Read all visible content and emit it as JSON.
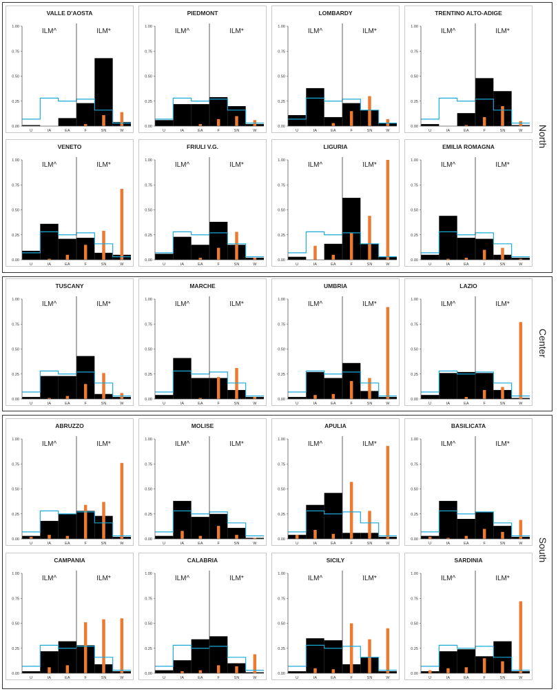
{
  "regions": [
    {
      "label": "North"
    },
    {
      "label": "Center"
    },
    {
      "label": "South"
    }
  ],
  "annotations": {
    "left": "ILM^",
    "right": "ILM*"
  },
  "colors": {
    "observed": "#000000",
    "reference": "#1ba8d8",
    "bar": "#ec7b31"
  },
  "chart_data": {
    "type": "bar",
    "categories": [
      "U",
      "IA",
      "EA",
      "F",
      "SN",
      "W"
    ],
    "ylim": [
      0,
      1
    ],
    "yticks": [
      "0.00",
      "0.25",
      "0.50",
      "0.75",
      "1.00"
    ],
    "reference_series": [
      0.07,
      0.28,
      0.25,
      0.27,
      0.16,
      0.03
    ],
    "panels": [
      {
        "title": "VALLE D'AOSTA",
        "region": "North",
        "hist": [
          0.01,
          0.0,
          0.08,
          0.23,
          0.68,
          0.04
        ],
        "bars": [
          0.0,
          0.0,
          0.0,
          0.02,
          0.11,
          0.14
        ]
      },
      {
        "title": "PIEDMONT",
        "region": "North",
        "hist": [
          0.06,
          0.22,
          0.22,
          0.29,
          0.2,
          0.02
        ],
        "bars": [
          0.0,
          0.0,
          0.02,
          0.07,
          0.1,
          0.06
        ]
      },
      {
        "title": "LOMBARDY",
        "region": "North",
        "hist": [
          0.11,
          0.38,
          0.09,
          0.23,
          0.16,
          0.03
        ],
        "bars": [
          0.0,
          0.0,
          0.03,
          0.15,
          0.3,
          0.07
        ]
      },
      {
        "title": "TRENTINO ALTO-ADIGE",
        "region": "North",
        "hist": [
          0.02,
          0.0,
          0.13,
          0.48,
          0.35,
          0.01
        ],
        "bars": [
          0.0,
          0.0,
          0.01,
          0.09,
          0.2,
          0.05
        ]
      },
      {
        "title": "VENETO",
        "region": "North",
        "hist": [
          0.09,
          0.36,
          0.21,
          0.22,
          0.07,
          0.05
        ],
        "bars": [
          0.0,
          0.01,
          0.05,
          0.15,
          0.29,
          0.71
        ]
      },
      {
        "title": "FRIULI V.G.",
        "region": "North",
        "hist": [
          0.06,
          0.23,
          0.15,
          0.38,
          0.15,
          0.02
        ],
        "bars": [
          0.0,
          0.0,
          0.02,
          0.12,
          0.28,
          0.02
        ]
      },
      {
        "title": "LIGURIA",
        "region": "North",
        "hist": [
          0.03,
          0.0,
          0.16,
          0.62,
          0.16,
          0.03
        ],
        "bars": [
          0.0,
          0.14,
          0.05,
          0.27,
          0.44,
          1.0
        ]
      },
      {
        "title": "EMILIA ROMAGNA",
        "region": "North",
        "hist": [
          0.05,
          0.44,
          0.22,
          0.21,
          0.05,
          0.02
        ],
        "bars": [
          0.0,
          0.01,
          0.02,
          0.1,
          0.12,
          0.01
        ]
      },
      {
        "title": "TUSCANY",
        "region": "Center",
        "hist": [
          0.02,
          0.23,
          0.23,
          0.43,
          0.05,
          0.02
        ],
        "bars": [
          0.0,
          0.01,
          0.03,
          0.15,
          0.26,
          0.06
        ]
      },
      {
        "title": "MARCHE",
        "region": "Center",
        "hist": [
          0.04,
          0.41,
          0.21,
          0.21,
          0.09,
          0.02
        ],
        "bars": [
          0.0,
          0.0,
          0.01,
          0.22,
          0.31,
          0.02
        ]
      },
      {
        "title": "UMBRIA",
        "region": "Center",
        "hist": [
          0.02,
          0.27,
          0.21,
          0.36,
          0.08,
          0.02
        ],
        "bars": [
          0.0,
          0.04,
          0.05,
          0.18,
          0.21,
          0.92
        ]
      },
      {
        "title": "LAZIO",
        "region": "Center",
        "hist": [
          0.04,
          0.26,
          0.27,
          0.26,
          0.09,
          0.01
        ],
        "bars": [
          0.0,
          0.0,
          0.02,
          0.09,
          0.12,
          0.77
        ]
      },
      {
        "title": "ABRUZZO",
        "region": "South",
        "hist": [
          0.03,
          0.18,
          0.25,
          0.28,
          0.23,
          0.02
        ],
        "bars": [
          0.02,
          0.04,
          0.03,
          0.34,
          0.37,
          0.76
        ]
      },
      {
        "title": "MOLISE",
        "region": "South",
        "hist": [
          0.03,
          0.38,
          0.22,
          0.25,
          0.11,
          0.01
        ],
        "bars": [
          0.0,
          0.08,
          0.03,
          0.13,
          0.04,
          0.01
        ]
      },
      {
        "title": "APULIA",
        "region": "South",
        "hist": [
          0.04,
          0.34,
          0.46,
          0.06,
          0.06,
          0.02
        ],
        "bars": [
          0.04,
          0.09,
          0.05,
          0.57,
          0.28,
          0.93
        ]
      },
      {
        "title": "BASILICATA",
        "region": "South",
        "hist": [
          0.03,
          0.38,
          0.2,
          0.27,
          0.13,
          0.02
        ],
        "bars": [
          0.02,
          0.01,
          0.03,
          0.1,
          0.07,
          0.19
        ]
      },
      {
        "title": "CAMPANIA",
        "region": "South",
        "hist": [
          0.02,
          0.22,
          0.32,
          0.28,
          0.09,
          0.02
        ],
        "bars": [
          0.0,
          0.06,
          0.08,
          0.51,
          0.54,
          0.55
        ]
      },
      {
        "title": "CALABRIA",
        "region": "South",
        "hist": [
          0.03,
          0.13,
          0.34,
          0.37,
          0.1,
          0.01
        ],
        "bars": [
          0.0,
          0.02,
          0.03,
          0.08,
          0.07,
          0.19
        ]
      },
      {
        "title": "SICILY",
        "region": "South",
        "hist": [
          0.02,
          0.35,
          0.33,
          0.09,
          0.16,
          0.02
        ],
        "bars": [
          0.0,
          0.05,
          0.04,
          0.5,
          0.34,
          0.45
        ]
      },
      {
        "title": "SARDINIA",
        "region": "South",
        "hist": [
          0.02,
          0.22,
          0.24,
          0.17,
          0.32,
          0.02
        ],
        "bars": [
          0.03,
          0.05,
          0.06,
          0.15,
          0.12,
          0.72
        ]
      }
    ]
  }
}
